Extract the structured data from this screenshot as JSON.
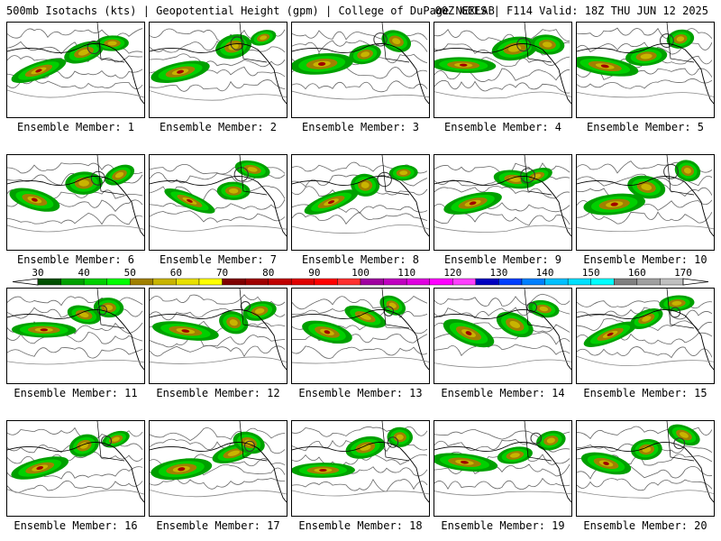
{
  "header": {
    "left": "500mb Isotachs (kts) | Geopotential Height (gpm) | College of DuPage NEXLAB",
    "right": "00Z GEFS | F114 Valid: 18Z THU JUN 12 2025"
  },
  "members": [
    "Ensemble Member: 1",
    "Ensemble Member: 2",
    "Ensemble Member: 3",
    "Ensemble Member: 4",
    "Ensemble Member: 5",
    "Ensemble Member: 6",
    "Ensemble Member: 7",
    "Ensemble Member: 8",
    "Ensemble Member: 9",
    "Ensemble Member: 10",
    "Ensemble Member: 11",
    "Ensemble Member: 12",
    "Ensemble Member: 13",
    "Ensemble Member: 14",
    "Ensemble Member: 15",
    "Ensemble Member: 16",
    "Ensemble Member: 17",
    "Ensemble Member: 18",
    "Ensemble Member: 19",
    "Ensemble Member: 20"
  ],
  "colorbar": {
    "labels": [
      "30",
      "40",
      "50",
      "60",
      "70",
      "80",
      "90",
      "100",
      "110",
      "120",
      "130",
      "140",
      "150",
      "160",
      "170"
    ],
    "colors": [
      "#005000",
      "#00a000",
      "#00d000",
      "#00ff00",
      "#a08000",
      "#c8b400",
      "#e8e000",
      "#ffff00",
      "#800000",
      "#a00000",
      "#c00000",
      "#e00000",
      "#ff0000",
      "#ff3030",
      "#a000a0",
      "#c000c0",
      "#e000e0",
      "#ff00ff",
      "#ff40ff",
      "#0000c0",
      "#0040ff",
      "#0080ff",
      "#00c0ff",
      "#00e0ff",
      "#00ffff",
      "#808080",
      "#a0a0a0",
      "#c0c0c0"
    ]
  }
}
